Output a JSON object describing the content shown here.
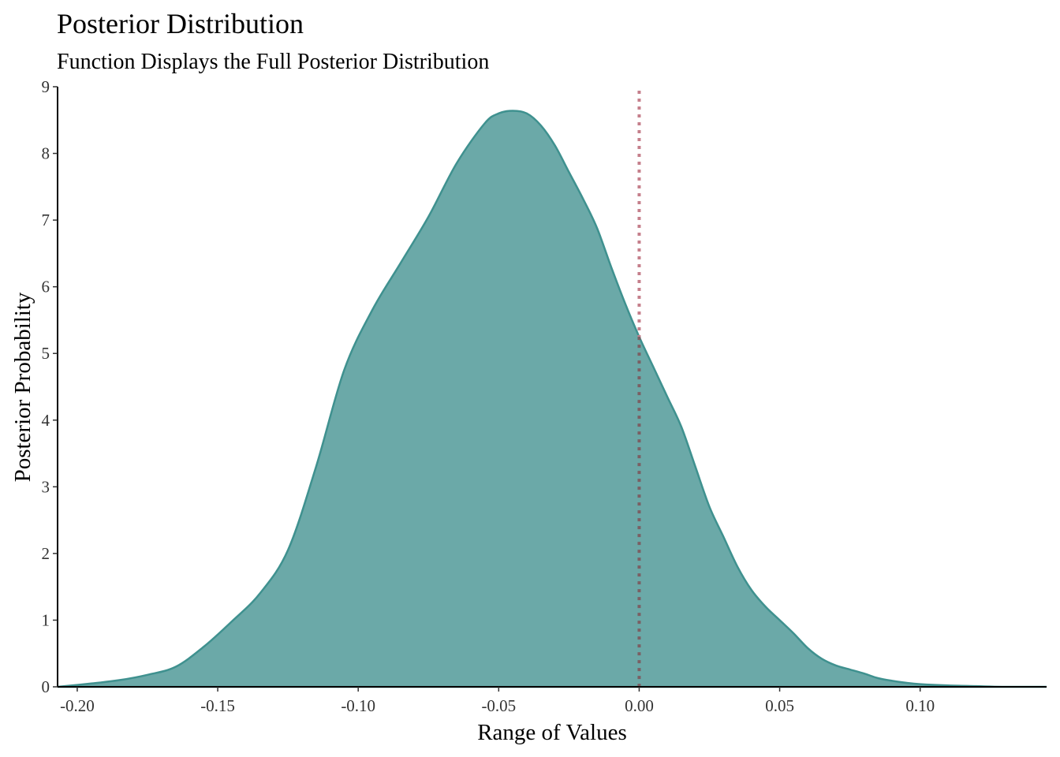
{
  "chart_data": {
    "type": "area",
    "title": "Posterior Distribution",
    "subtitle": "Function Displays the Full Posterior Distribution",
    "xlabel": "Range of Values",
    "ylabel": "Posterior Probability",
    "xlim": [
      -0.207,
      0.145
    ],
    "ylim": [
      0,
      9
    ],
    "x_ticks": [
      -0.2,
      -0.15,
      -0.1,
      -0.05,
      0.0,
      0.05,
      0.1
    ],
    "x_tick_labels": [
      "-0.20",
      "-0.15",
      "-0.10",
      "-0.05",
      "0.00",
      "0.05",
      "0.10"
    ],
    "y_ticks": [
      0,
      1,
      2,
      3,
      4,
      5,
      6,
      7,
      8,
      9
    ],
    "y_tick_labels": [
      "0",
      "1",
      "2",
      "3",
      "4",
      "5",
      "6",
      "7",
      "8",
      "9"
    ],
    "grid": false,
    "legend": "none",
    "series": [
      {
        "x": [
          -0.207,
          -0.195,
          -0.185,
          -0.175,
          -0.165,
          -0.155,
          -0.145,
          -0.135,
          -0.125,
          -0.115,
          -0.105,
          -0.095,
          -0.085,
          -0.075,
          -0.065,
          -0.055,
          -0.05,
          -0.045,
          -0.04,
          -0.035,
          -0.03,
          -0.025,
          -0.02,
          -0.015,
          -0.01,
          -0.005,
          0.0,
          0.005,
          0.01,
          0.015,
          0.02,
          0.025,
          0.03,
          0.035,
          0.04,
          0.045,
          0.05,
          0.055,
          0.06,
          0.065,
          0.07,
          0.075,
          0.08,
          0.085,
          0.09,
          0.095,
          0.1,
          0.11,
          0.12,
          0.13,
          0.145
        ],
        "y": [
          0.0,
          0.05,
          0.1,
          0.18,
          0.3,
          0.6,
          0.98,
          1.4,
          2.05,
          3.3,
          4.75,
          5.65,
          6.35,
          7.05,
          7.85,
          8.45,
          8.6,
          8.64,
          8.6,
          8.42,
          8.12,
          7.72,
          7.32,
          6.88,
          6.3,
          5.75,
          5.25,
          4.8,
          4.35,
          3.9,
          3.3,
          2.7,
          2.25,
          1.8,
          1.45,
          1.2,
          1.0,
          0.8,
          0.58,
          0.42,
          0.32,
          0.26,
          0.2,
          0.13,
          0.09,
          0.06,
          0.04,
          0.02,
          0.01,
          0.0,
          0.0
        ]
      }
    ],
    "reference_line": {
      "x": 0.0,
      "style": "dotted",
      "color": "#c57f8b"
    },
    "fill_color": "#6ba9a8",
    "line_color": "#3f918f"
  }
}
